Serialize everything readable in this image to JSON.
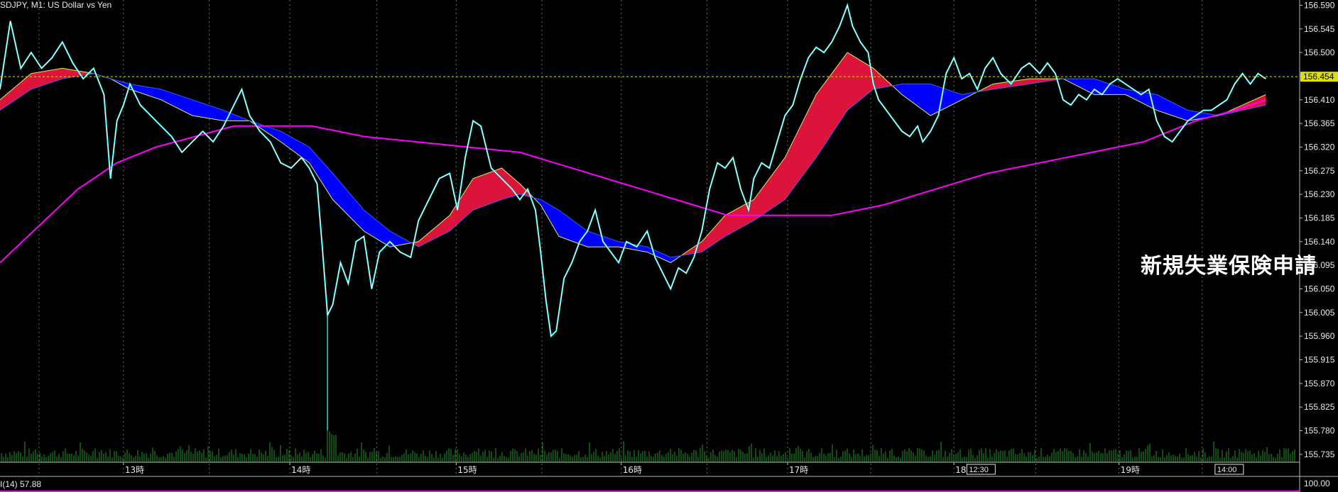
{
  "header": {
    "title": "SDJPY, M1:  US Dollar vs Yen"
  },
  "subwindow": {
    "label": "I(14) 57.88",
    "scale_top": "100.00"
  },
  "overlay_text": "新規失業保険申請",
  "colors": {
    "background": "#000000",
    "price_line": "#ffffff",
    "price_shadow": "#00e5e5",
    "bull_cloud": "#dc143c",
    "bear_cloud": "#0000ff",
    "fast_ma": "#e8e85a",
    "slow_ma_line": "#3060ff",
    "long_ma": "#ff00ff",
    "volume": "#1f9a1f",
    "grid": "#6a6a6a",
    "bid_line": "#e0e000",
    "bid_label_bg": "#e0e000"
  },
  "chart_data": {
    "type": "line",
    "symbol": "USDJPY",
    "timeframe": "M1",
    "y_ticks": [
      "156.590",
      "156.545",
      "156.500",
      "156.455",
      "156.410",
      "156.365",
      "156.320",
      "156.275",
      "156.230",
      "156.185",
      "156.140",
      "156.095",
      "156.050",
      "156.005",
      "155.960",
      "155.915",
      "155.870",
      "155.825",
      "155.780",
      "155.735"
    ],
    "ylim": [
      155.72,
      156.6
    ],
    "current_price": "156.454",
    "x_ticks": [
      {
        "label": "13時",
        "x": 0.095
      },
      {
        "label": "14時",
        "x": 0.223
      },
      {
        "label": "15時",
        "x": 0.351
      },
      {
        "label": "16時",
        "x": 0.478
      },
      {
        "label": "17時",
        "x": 0.606
      },
      {
        "label": "18時",
        "x": 0.734
      },
      {
        "label": "19時",
        "x": 0.861
      }
    ],
    "x_markers": [
      {
        "label": "12:30",
        "x": 0.745
      },
      {
        "label": "14:00",
        "x": 0.936
      }
    ],
    "series": [
      {
        "role": "price",
        "values": [
          [
            0.0,
            156.43
          ],
          [
            0.008,
            156.56
          ],
          [
            0.016,
            156.47
          ],
          [
            0.024,
            156.5
          ],
          [
            0.032,
            156.47
          ],
          [
            0.04,
            156.49
          ],
          [
            0.048,
            156.52
          ],
          [
            0.056,
            156.48
          ],
          [
            0.064,
            156.45
          ],
          [
            0.072,
            156.47
          ],
          [
            0.08,
            156.42
          ],
          [
            0.085,
            156.26
          ],
          [
            0.09,
            156.37
          ],
          [
            0.095,
            156.4
          ],
          [
            0.1,
            156.44
          ],
          [
            0.108,
            156.4
          ],
          [
            0.116,
            156.38
          ],
          [
            0.124,
            156.36
          ],
          [
            0.132,
            156.34
          ],
          [
            0.14,
            156.31
          ],
          [
            0.148,
            156.33
          ],
          [
            0.156,
            156.35
          ],
          [
            0.164,
            156.33
          ],
          [
            0.172,
            156.36
          ],
          [
            0.18,
            156.4
          ],
          [
            0.186,
            156.43
          ],
          [
            0.192,
            156.38
          ],
          [
            0.2,
            156.35
          ],
          [
            0.208,
            156.33
          ],
          [
            0.216,
            156.29
          ],
          [
            0.224,
            156.28
          ],
          [
            0.232,
            156.3
          ],
          [
            0.238,
            156.28
          ],
          [
            0.244,
            156.25
          ],
          [
            0.248,
            156.13
          ],
          [
            0.252,
            156.0
          ],
          [
            0.256,
            156.02
          ],
          [
            0.262,
            156.1
          ],
          [
            0.268,
            156.06
          ],
          [
            0.274,
            156.14
          ],
          [
            0.28,
            156.15
          ],
          [
            0.286,
            156.05
          ],
          [
            0.292,
            156.12
          ],
          [
            0.3,
            156.14
          ],
          [
            0.308,
            156.12
          ],
          [
            0.316,
            156.11
          ],
          [
            0.322,
            156.18
          ],
          [
            0.33,
            156.22
          ],
          [
            0.338,
            156.26
          ],
          [
            0.346,
            156.27
          ],
          [
            0.352,
            156.2
          ],
          [
            0.358,
            156.3
          ],
          [
            0.364,
            156.37
          ],
          [
            0.37,
            156.36
          ],
          [
            0.378,
            156.28
          ],
          [
            0.386,
            156.26
          ],
          [
            0.394,
            156.24
          ],
          [
            0.4,
            156.22
          ],
          [
            0.406,
            156.24
          ],
          [
            0.412,
            156.2
          ],
          [
            0.416,
            156.12
          ],
          [
            0.42,
            156.03
          ],
          [
            0.424,
            155.96
          ],
          [
            0.428,
            155.97
          ],
          [
            0.434,
            156.07
          ],
          [
            0.44,
            156.1
          ],
          [
            0.446,
            156.14
          ],
          [
            0.452,
            156.16
          ],
          [
            0.458,
            156.2
          ],
          [
            0.464,
            156.14
          ],
          [
            0.47,
            156.12
          ],
          [
            0.476,
            156.1
          ],
          [
            0.482,
            156.14
          ],
          [
            0.49,
            156.13
          ],
          [
            0.498,
            156.16
          ],
          [
            0.504,
            156.11
          ],
          [
            0.51,
            156.08
          ],
          [
            0.516,
            156.05
          ],
          [
            0.522,
            156.09
          ],
          [
            0.528,
            156.08
          ],
          [
            0.534,
            156.11
          ],
          [
            0.54,
            156.16
          ],
          [
            0.546,
            156.24
          ],
          [
            0.552,
            156.29
          ],
          [
            0.558,
            156.28
          ],
          [
            0.564,
            156.3
          ],
          [
            0.57,
            156.24
          ],
          [
            0.576,
            156.2
          ],
          [
            0.58,
            156.26
          ],
          [
            0.586,
            156.29
          ],
          [
            0.592,
            156.28
          ],
          [
            0.598,
            156.33
          ],
          [
            0.604,
            156.38
          ],
          [
            0.61,
            156.4
          ],
          [
            0.616,
            156.45
          ],
          [
            0.622,
            156.49
          ],
          [
            0.628,
            156.51
          ],
          [
            0.634,
            156.5
          ],
          [
            0.64,
            156.52
          ],
          [
            0.646,
            156.55
          ],
          [
            0.652,
            156.59
          ],
          [
            0.656,
            156.55
          ],
          [
            0.662,
            156.52
          ],
          [
            0.668,
            156.5
          ],
          [
            0.672,
            156.44
          ],
          [
            0.676,
            156.41
          ],
          [
            0.682,
            156.39
          ],
          [
            0.688,
            156.37
          ],
          [
            0.694,
            156.35
          ],
          [
            0.7,
            156.34
          ],
          [
            0.706,
            156.36
          ],
          [
            0.71,
            156.33
          ],
          [
            0.716,
            156.35
          ],
          [
            0.722,
            156.38
          ],
          [
            0.728,
            156.46
          ],
          [
            0.734,
            156.49
          ],
          [
            0.74,
            156.45
          ],
          [
            0.746,
            156.46
          ],
          [
            0.752,
            156.43
          ],
          [
            0.758,
            156.47
          ],
          [
            0.764,
            156.49
          ],
          [
            0.77,
            156.46
          ],
          [
            0.778,
            156.44
          ],
          [
            0.786,
            156.47
          ],
          [
            0.792,
            156.48
          ],
          [
            0.8,
            156.46
          ],
          [
            0.806,
            156.48
          ],
          [
            0.812,
            156.46
          ],
          [
            0.818,
            156.41
          ],
          [
            0.824,
            156.4
          ],
          [
            0.83,
            156.42
          ],
          [
            0.836,
            156.41
          ],
          [
            0.842,
            156.43
          ],
          [
            0.848,
            156.42
          ],
          [
            0.854,
            156.44
          ],
          [
            0.86,
            156.45
          ],
          [
            0.866,
            156.44
          ],
          [
            0.872,
            156.43
          ],
          [
            0.878,
            156.42
          ],
          [
            0.884,
            156.43
          ],
          [
            0.89,
            156.37
          ],
          [
            0.896,
            156.34
          ],
          [
            0.902,
            156.33
          ],
          [
            0.908,
            156.35
          ],
          [
            0.914,
            156.37
          ],
          [
            0.92,
            156.38
          ],
          [
            0.926,
            156.39
          ],
          [
            0.932,
            156.39
          ],
          [
            0.938,
            156.4
          ],
          [
            0.944,
            156.41
          ],
          [
            0.95,
            156.44
          ],
          [
            0.956,
            156.46
          ],
          [
            0.962,
            156.44
          ],
          [
            0.968,
            156.46
          ],
          [
            0.974,
            156.45
          ]
        ]
      },
      {
        "role": "fast_ma",
        "values": [
          [
            0.0,
            156.41
          ],
          [
            0.024,
            156.46
          ],
          [
            0.048,
            156.47
          ],
          [
            0.072,
            156.46
          ],
          [
            0.085,
            156.45
          ],
          [
            0.1,
            156.43
          ],
          [
            0.124,
            156.41
          ],
          [
            0.148,
            156.38
          ],
          [
            0.172,
            156.37
          ],
          [
            0.192,
            156.37
          ],
          [
            0.216,
            156.33
          ],
          [
            0.238,
            156.29
          ],
          [
            0.256,
            156.22
          ],
          [
            0.28,
            156.16
          ],
          [
            0.3,
            156.13
          ],
          [
            0.322,
            156.14
          ],
          [
            0.346,
            156.19
          ],
          [
            0.364,
            156.26
          ],
          [
            0.386,
            156.28
          ],
          [
            0.4,
            156.25
          ],
          [
            0.416,
            156.21
          ],
          [
            0.43,
            156.15
          ],
          [
            0.452,
            156.13
          ],
          [
            0.476,
            156.13
          ],
          [
            0.498,
            156.12
          ],
          [
            0.516,
            156.1
          ],
          [
            0.54,
            156.14
          ],
          [
            0.558,
            156.19
          ],
          [
            0.58,
            156.22
          ],
          [
            0.604,
            156.3
          ],
          [
            0.628,
            156.42
          ],
          [
            0.652,
            156.5
          ],
          [
            0.672,
            156.47
          ],
          [
            0.694,
            156.42
          ],
          [
            0.716,
            156.38
          ],
          [
            0.74,
            156.41
          ],
          [
            0.764,
            156.44
          ],
          [
            0.792,
            156.45
          ],
          [
            0.818,
            156.45
          ],
          [
            0.842,
            156.42
          ],
          [
            0.866,
            156.42
          ],
          [
            0.89,
            156.39
          ],
          [
            0.914,
            156.37
          ],
          [
            0.938,
            156.38
          ],
          [
            0.956,
            156.4
          ],
          [
            0.974,
            156.42
          ]
        ]
      },
      {
        "role": "slow_ma",
        "values": [
          [
            0.0,
            156.39
          ],
          [
            0.024,
            156.43
          ],
          [
            0.048,
            156.45
          ],
          [
            0.072,
            156.46
          ],
          [
            0.085,
            156.45
          ],
          [
            0.1,
            156.44
          ],
          [
            0.124,
            156.43
          ],
          [
            0.148,
            156.41
          ],
          [
            0.172,
            156.39
          ],
          [
            0.192,
            156.37
          ],
          [
            0.216,
            156.35
          ],
          [
            0.238,
            156.32
          ],
          [
            0.256,
            156.27
          ],
          [
            0.28,
            156.2
          ],
          [
            0.3,
            156.16
          ],
          [
            0.322,
            156.13
          ],
          [
            0.346,
            156.16
          ],
          [
            0.364,
            156.2
          ],
          [
            0.386,
            156.22
          ],
          [
            0.4,
            156.23
          ],
          [
            0.416,
            156.22
          ],
          [
            0.43,
            156.2
          ],
          [
            0.452,
            156.16
          ],
          [
            0.476,
            156.14
          ],
          [
            0.498,
            156.13
          ],
          [
            0.516,
            156.11
          ],
          [
            0.54,
            156.12
          ],
          [
            0.558,
            156.15
          ],
          [
            0.58,
            156.18
          ],
          [
            0.604,
            156.22
          ],
          [
            0.628,
            156.3
          ],
          [
            0.652,
            156.39
          ],
          [
            0.672,
            156.43
          ],
          [
            0.694,
            156.44
          ],
          [
            0.716,
            156.44
          ],
          [
            0.74,
            156.42
          ],
          [
            0.764,
            156.43
          ],
          [
            0.792,
            156.44
          ],
          [
            0.818,
            156.45
          ],
          [
            0.842,
            156.45
          ],
          [
            0.866,
            156.43
          ],
          [
            0.89,
            156.42
          ],
          [
            0.914,
            156.39
          ],
          [
            0.938,
            156.38
          ],
          [
            0.956,
            156.39
          ],
          [
            0.974,
            156.4
          ]
        ]
      },
      {
        "role": "long_ma",
        "values": [
          [
            0.0,
            156.1
          ],
          [
            0.03,
            156.17
          ],
          [
            0.06,
            156.24
          ],
          [
            0.09,
            156.29
          ],
          [
            0.12,
            156.32
          ],
          [
            0.15,
            156.34
          ],
          [
            0.18,
            156.36
          ],
          [
            0.2,
            156.36
          ],
          [
            0.24,
            156.36
          ],
          [
            0.28,
            156.34
          ],
          [
            0.32,
            156.33
          ],
          [
            0.36,
            156.32
          ],
          [
            0.4,
            156.31
          ],
          [
            0.44,
            156.28
          ],
          [
            0.48,
            156.25
          ],
          [
            0.52,
            156.22
          ],
          [
            0.56,
            156.19
          ],
          [
            0.6,
            156.19
          ],
          [
            0.64,
            156.19
          ],
          [
            0.68,
            156.21
          ],
          [
            0.72,
            156.24
          ],
          [
            0.76,
            156.27
          ],
          [
            0.8,
            156.29
          ],
          [
            0.84,
            156.31
          ],
          [
            0.88,
            156.33
          ],
          [
            0.92,
            156.37
          ],
          [
            0.95,
            156.39
          ],
          [
            0.974,
            156.41
          ]
        ]
      }
    ]
  }
}
